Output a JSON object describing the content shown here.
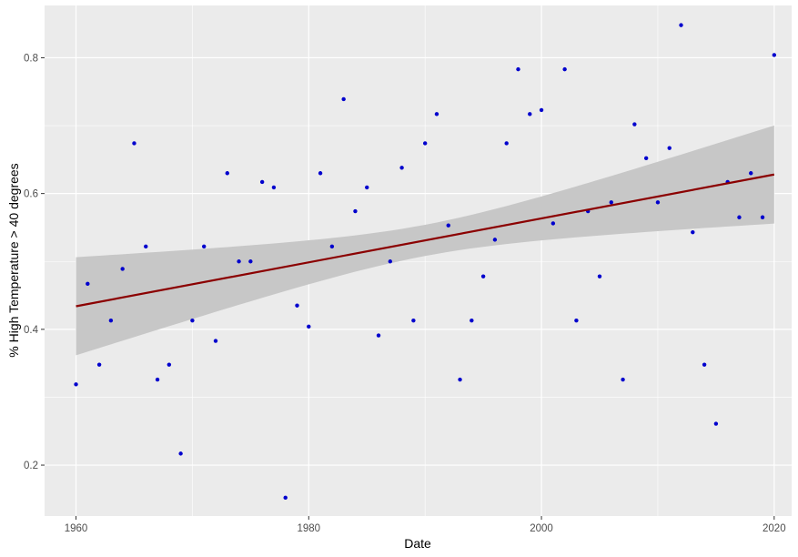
{
  "chart_data": {
    "type": "scatter",
    "title": "",
    "xlabel": "Date",
    "ylabel": "% High Temperature > 40 degrees",
    "xlim": [
      1957.3,
      2021.5
    ],
    "ylim": [
      0.125,
      0.877
    ],
    "x_ticks": [
      1960,
      1980,
      2000,
      2020
    ],
    "x_tick_labels": [
      "1960",
      "1980",
      "2000",
      "2020"
    ],
    "y_ticks": [
      0.2,
      0.4,
      0.6,
      0.8
    ],
    "y_tick_labels": [
      "0.2",
      "0.4",
      "0.6",
      "0.8"
    ],
    "grid": true,
    "legend": "none",
    "points": {
      "x": [
        1960,
        1961,
        1962,
        1963,
        1964,
        1965,
        1966,
        1967,
        1968,
        1969,
        1970,
        1971,
        1972,
        1973,
        1974,
        1975,
        1976,
        1977,
        1978,
        1979,
        1980,
        1981,
        1982,
        1983,
        1984,
        1985,
        1986,
        1987,
        1988,
        1989,
        1990,
        1991,
        1992,
        1993,
        1994,
        1995,
        1996,
        1997,
        1998,
        1999,
        2000,
        2001,
        2002,
        2003,
        2004,
        2005,
        2006,
        2007,
        2008,
        2009,
        2010,
        2011,
        2012,
        2013,
        2014,
        2015,
        2016,
        2017,
        2018,
        2019,
        2020
      ],
      "y": [
        0.319,
        0.467,
        0.348,
        0.413,
        0.489,
        0.674,
        0.522,
        0.326,
        0.348,
        0.217,
        0.413,
        0.522,
        0.383,
        0.63,
        0.5,
        0.5,
        0.617,
        0.609,
        0.152,
        0.435,
        0.404,
        0.63,
        0.522,
        0.739,
        0.574,
        0.609,
        0.391,
        0.5,
        0.638,
        0.413,
        0.674,
        0.717,
        0.553,
        0.326,
        0.413,
        0.478,
        0.532,
        0.674,
        0.783,
        0.717,
        0.723,
        0.556,
        0.783,
        0.413,
        0.574,
        0.478,
        0.587,
        0.326,
        0.702,
        0.652,
        0.587,
        0.667,
        0.848,
        0.543,
        0.348,
        0.261,
        0.617,
        0.565,
        0.63,
        0.565,
        0.804
      ],
      "color": "#0000CD"
    },
    "trend": {
      "method": "linear",
      "x": [
        1960,
        2020
      ],
      "y": [
        0.434,
        0.628
      ],
      "ci_lower": [
        0.362,
        0.556
      ],
      "ci_upper": [
        0.507,
        0.7
      ],
      "line_color": "#8B0000",
      "band_color": "#C7C7C7"
    },
    "panel_background": "#EBEBEB",
    "grid_color": "#FFFFFF"
  }
}
